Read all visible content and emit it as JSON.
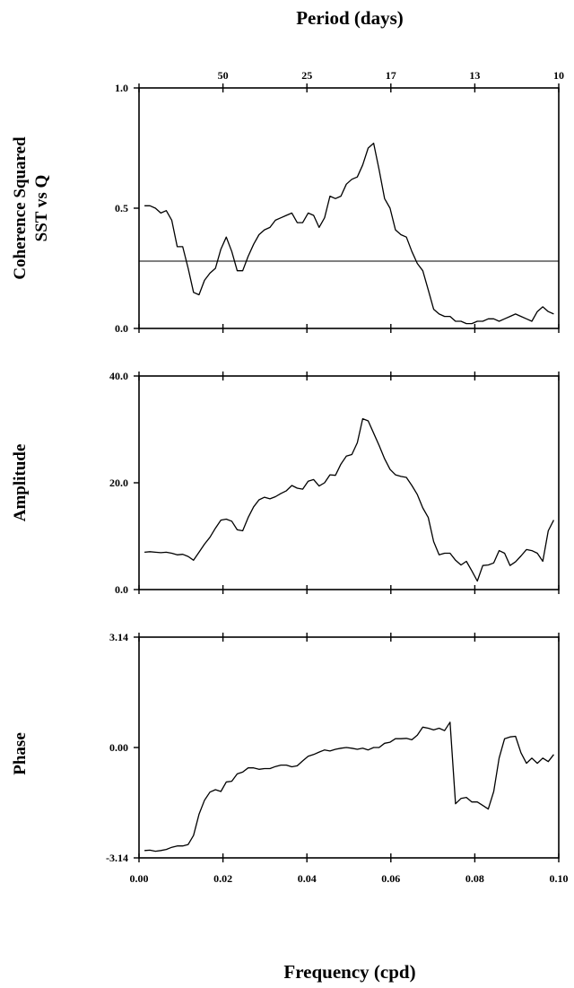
{
  "figure": {
    "top_title": "Period (days)",
    "bottom_title": "Frequency (cpd)"
  },
  "chart_data": [
    {
      "type": "line",
      "ylabel_lines": [
        "Coherence Squared",
        "SST vs Q"
      ],
      "xlim": [
        0.0,
        0.1
      ],
      "ylim": [
        0.0,
        1.0
      ],
      "ytick_labels": [
        "0.0",
        "0.5",
        "1.0"
      ],
      "ytick_values": [
        0.0,
        0.5,
        1.0
      ],
      "top_ticks": [
        {
          "label": "50",
          "x": 0.02
        },
        {
          "label": "25",
          "x": 0.04
        },
        {
          "label": "17",
          "x": 0.06
        },
        {
          "label": "13",
          "x": 0.08
        },
        {
          "label": "10",
          "x": 0.1
        }
      ],
      "reference_line": 0.28,
      "x": [
        0.0013,
        0.0026,
        0.0039,
        0.0052,
        0.0065,
        0.0078,
        0.0091,
        0.0104,
        0.0117,
        0.013,
        0.0143,
        0.0156,
        0.0169,
        0.0182,
        0.0195,
        0.0208,
        0.0221,
        0.0234,
        0.0247,
        0.026,
        0.0273,
        0.0286,
        0.0299,
        0.0312,
        0.0325,
        0.0338,
        0.0351,
        0.0364,
        0.0377,
        0.039,
        0.0403,
        0.0416,
        0.0429,
        0.0442,
        0.0455,
        0.0468,
        0.0481,
        0.0494,
        0.0507,
        0.052,
        0.0533,
        0.0546,
        0.0559,
        0.0572,
        0.0585,
        0.0598,
        0.0611,
        0.0624,
        0.0637,
        0.065,
        0.0663,
        0.0676,
        0.0689,
        0.0702,
        0.0715,
        0.0728,
        0.0741,
        0.0754,
        0.0767,
        0.078,
        0.0793,
        0.0806,
        0.0819,
        0.0832,
        0.0845,
        0.0858,
        0.0871,
        0.0884,
        0.0897,
        0.091,
        0.0923,
        0.0936,
        0.0949,
        0.0962,
        0.0975,
        0.0988
      ],
      "y": [
        0.51,
        0.51,
        0.5,
        0.48,
        0.49,
        0.45,
        0.34,
        0.34,
        0.25,
        0.15,
        0.14,
        0.2,
        0.23,
        0.25,
        0.33,
        0.38,
        0.32,
        0.24,
        0.24,
        0.3,
        0.35,
        0.39,
        0.41,
        0.42,
        0.45,
        0.46,
        0.47,
        0.48,
        0.44,
        0.44,
        0.48,
        0.47,
        0.42,
        0.46,
        0.55,
        0.54,
        0.55,
        0.6,
        0.62,
        0.63,
        0.68,
        0.75,
        0.77,
        0.66,
        0.54,
        0.5,
        0.41,
        0.39,
        0.38,
        0.32,
        0.27,
        0.24,
        0.16,
        0.08,
        0.06,
        0.05,
        0.05,
        0.03,
        0.03,
        0.02,
        0.02,
        0.03,
        0.03,
        0.04,
        0.04,
        0.03,
        0.04,
        0.05,
        0.06,
        0.05,
        0.04,
        0.03,
        0.07,
        0.09,
        0.07,
        0.06
      ]
    },
    {
      "type": "line",
      "ylabel_lines": [
        "Amplitude"
      ],
      "xlim": [
        0.0,
        0.1
      ],
      "ylim": [
        0.0,
        40.0
      ],
      "ytick_labels": [
        "0.0",
        "20.0",
        "40.0"
      ],
      "ytick_values": [
        0.0,
        20.0,
        40.0
      ],
      "x": [
        0.0013,
        0.0026,
        0.0039,
        0.0052,
        0.0065,
        0.0078,
        0.0091,
        0.0104,
        0.0117,
        0.013,
        0.0143,
        0.0156,
        0.0169,
        0.0182,
        0.0195,
        0.0208,
        0.0221,
        0.0234,
        0.0247,
        0.026,
        0.0273,
        0.0286,
        0.0299,
        0.0312,
        0.0325,
        0.0338,
        0.0351,
        0.0364,
        0.0377,
        0.039,
        0.0403,
        0.0416,
        0.0429,
        0.0442,
        0.0455,
        0.0468,
        0.0481,
        0.0494,
        0.0507,
        0.052,
        0.0533,
        0.0546,
        0.0559,
        0.0572,
        0.0585,
        0.0598,
        0.0611,
        0.0624,
        0.0637,
        0.065,
        0.0663,
        0.0676,
        0.0689,
        0.0702,
        0.0715,
        0.0728,
        0.0741,
        0.0754,
        0.0767,
        0.078,
        0.0793,
        0.0806,
        0.0819,
        0.0832,
        0.0845,
        0.0858,
        0.0871,
        0.0884,
        0.0897,
        0.091,
        0.0923,
        0.0936,
        0.0949,
        0.0962,
        0.0975,
        0.0988
      ],
      "y": [
        7.0,
        7.1,
        7.0,
        6.9,
        7.0,
        6.8,
        6.5,
        6.6,
        6.2,
        5.5,
        7.0,
        8.5,
        9.8,
        11.5,
        13.0,
        13.2,
        12.8,
        11.2,
        11.0,
        13.5,
        15.5,
        16.8,
        17.3,
        17.0,
        17.4,
        18.0,
        18.5,
        19.5,
        19.0,
        18.8,
        20.3,
        20.6,
        19.4,
        20.0,
        21.5,
        21.4,
        23.5,
        25.0,
        25.3,
        27.5,
        32.0,
        31.6,
        29.3,
        27.0,
        24.5,
        22.5,
        21.5,
        21.2,
        21.0,
        19.5,
        17.8,
        15.3,
        13.5,
        9.0,
        6.5,
        6.8,
        6.8,
        5.5,
        4.6,
        5.3,
        3.5,
        1.6,
        4.5,
        4.6,
        5.0,
        7.3,
        6.8,
        4.5,
        5.2,
        6.3,
        7.5,
        7.3,
        6.8,
        5.3,
        11.0,
        13.0
      ]
    },
    {
      "type": "line",
      "ylabel_lines": [
        "Phase"
      ],
      "xlim": [
        0.0,
        0.1
      ],
      "ylim": [
        -3.14,
        3.14
      ],
      "ytick_labels": [
        "-3.14",
        "0.00",
        "3.14"
      ],
      "ytick_values": [
        -3.14,
        0.0,
        3.14
      ],
      "bottom_ticks": [
        {
          "label": "0.00",
          "x": 0.0
        },
        {
          "label": "0.02",
          "x": 0.02
        },
        {
          "label": "0.04",
          "x": 0.04
        },
        {
          "label": "0.06",
          "x": 0.06
        },
        {
          "label": "0.08",
          "x": 0.08
        },
        {
          "label": "0.10",
          "x": 0.1
        }
      ],
      "x": [
        0.0013,
        0.0026,
        0.0039,
        0.0052,
        0.0065,
        0.0078,
        0.0091,
        0.0104,
        0.0117,
        0.013,
        0.0143,
        0.0156,
        0.0169,
        0.0182,
        0.0195,
        0.0208,
        0.0221,
        0.0234,
        0.0247,
        0.026,
        0.0273,
        0.0286,
        0.0299,
        0.0312,
        0.0325,
        0.0338,
        0.0351,
        0.0364,
        0.0377,
        0.039,
        0.0403,
        0.0416,
        0.0429,
        0.0442,
        0.0455,
        0.0468,
        0.0481,
        0.0494,
        0.0507,
        0.052,
        0.0533,
        0.0546,
        0.0559,
        0.0572,
        0.0585,
        0.0598,
        0.0611,
        0.0624,
        0.0637,
        0.065,
        0.0663,
        0.0676,
        0.0689,
        0.0702,
        0.0715,
        0.0728,
        0.0741,
        0.0754,
        0.0767,
        0.078,
        0.0793,
        0.0806,
        0.0819,
        0.0832,
        0.0845,
        0.0858,
        0.0871,
        0.0884,
        0.0897,
        0.091,
        0.0923,
        0.0936,
        0.0949,
        0.0962,
        0.0975,
        0.0988
      ],
      "y": [
        -2.93,
        -2.92,
        -2.95,
        -2.93,
        -2.9,
        -2.84,
        -2.8,
        -2.8,
        -2.76,
        -2.5,
        -1.9,
        -1.5,
        -1.27,
        -1.2,
        -1.25,
        -0.98,
        -0.96,
        -0.75,
        -0.7,
        -0.58,
        -0.58,
        -0.62,
        -0.6,
        -0.6,
        -0.54,
        -0.5,
        -0.5,
        -0.55,
        -0.52,
        -0.38,
        -0.25,
        -0.2,
        -0.13,
        -0.07,
        -0.1,
        -0.05,
        -0.02,
        0.0,
        -0.02,
        -0.05,
        -0.02,
        -0.07,
        0.0,
        0.0,
        0.12,
        0.15,
        0.25,
        0.25,
        0.26,
        0.22,
        0.35,
        0.58,
        0.55,
        0.5,
        0.55,
        0.48,
        0.72,
        -1.6,
        -1.45,
        -1.42,
        -1.55,
        -1.55,
        -1.65,
        -1.75,
        -1.25,
        -0.3,
        0.25,
        0.3,
        0.32,
        -0.15,
        -0.45,
        -0.3,
        -0.45,
        -0.3,
        -0.4,
        -0.2
      ]
    }
  ]
}
